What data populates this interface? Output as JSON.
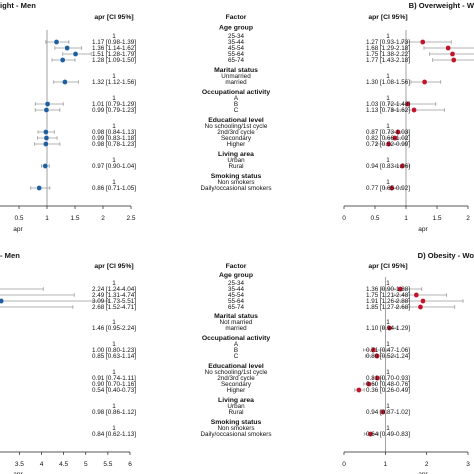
{
  "panels": [
    {
      "id": "A",
      "title": "ight - Men",
      "color": "#1f5fa0",
      "ci_header": "apr [CI 95%]",
      "ticks": [
        "0",
        "0.5",
        "1",
        "1.5",
        "2",
        "2.5"
      ],
      "xlabel": "apr",
      "ci_labels": [
        "1",
        "1.17 [0.98-1.39]",
        "1.36 [1.14-1.62]",
        "1.51 [1.28-1.79]",
        "1.28 [1.09-1.50]",
        "1",
        "1.32 [1.12-1.56]",
        "1",
        "1.01 [0.79-1.29]",
        "0.99 [0.79-1.23]",
        "1",
        "0.98 [0.84-1.13]",
        "0.99 [0.83-1.18]",
        "0.98 [0.78-1.23]",
        "1",
        "0.97 [0.90-1.04]",
        "1",
        "0.86 [0.71-1.05]"
      ]
    },
    {
      "id": "B",
      "title": "B) Overweight - W",
      "color": "#c0142a",
      "ci_header": "apr [CI 95%]",
      "ticks": [
        "0",
        "0.5",
        "1",
        "1.5",
        "2"
      ],
      "xlabel": "apr",
      "ci_labels": [
        "1",
        "1.27 [0.93-1.73]",
        "1.68 [1.29-2.18]",
        "1.75 [1.38-2.22]",
        "1.77 [1.43-2.18]",
        "1",
        "1.30 [1.08-1.56]",
        "1",
        "1.03 [0.72-1.48]",
        "1.13 [0.78-1.62]",
        "1",
        "0.87 [0.73-1.03]",
        "0.82 [0.66-1.02]",
        "0.72 [0.52-0.99]",
        "1",
        "0.94 [0.83-1.06]",
        "1",
        "0.77 [0.65-0.92]"
      ]
    },
    {
      "id": "C",
      "title": "- Men",
      "color": "#1f5fa0",
      "ci_header": "apr [CI 95%]",
      "ticks": [
        "1.5",
        "2",
        "2.5",
        "3",
        "3.5",
        "4",
        "4.5",
        "5",
        "5.5",
        "6"
      ],
      "xlabel": "apr",
      "ci_labels": [
        "1",
        "2.24 [1.24-4.04]",
        "2.49 [1.31-4.74]",
        "3.09 [1.73-5.51]",
        "2.68 [1.52-4.71]",
        "1",
        "1.46 [0.95-2.24]",
        "1",
        "1.00 [0.80-1.23]",
        "0.85 [0.63-1.14]",
        "1",
        "0.91 [0.74-1.11]",
        "0.90 [0.70-1.16]",
        "0.54 [0.40-0.73]",
        "1",
        "0.98 [0.86-1.12]",
        "1",
        "0.84 [0.62-1.13]"
      ]
    },
    {
      "id": "D",
      "title": "D) Obesity - Wo",
      "color": "#c0142a",
      "ci_header": "apr [CI 95%]",
      "ticks": [
        "0",
        "1",
        "2",
        "3"
      ],
      "xlabel": "apr",
      "ci_labels": [
        "1",
        "1.36 [0.90-1.88]",
        "1.75 [1.21-2.48]",
        "1.91 [1.26-2.88]",
        "1.85 [1.27-2.68]",
        "1",
        "1.10 [0.94-1.29]",
        "1",
        "0.71 [0.47-1.06]",
        "0.80 [0.52-1.24]",
        "1",
        "0.81 [0.70-0.93]",
        "0.60 [0.48-0.76]",
        "0.36 [0.26-0.49]",
        "1",
        "0.94 [0.87-1.02]",
        "1",
        "0.64 [0.49-0.83]"
      ]
    }
  ],
  "factor_tables": [
    {
      "rows": [
        {
          "text": "Factor",
          "kind": "header"
        },
        {
          "text": "Age group",
          "kind": "header"
        },
        {
          "text": "25-34",
          "kind": "level"
        },
        {
          "text": "35-44",
          "kind": "level"
        },
        {
          "text": "45-54",
          "kind": "level"
        },
        {
          "text": "55-64",
          "kind": "level"
        },
        {
          "text": "65-74",
          "kind": "level"
        },
        {
          "text": "Marital status",
          "kind": "header"
        },
        {
          "text": "Unmarried",
          "kind": "level"
        },
        {
          "text": "married",
          "kind": "level"
        },
        {
          "text": "Occupational activity",
          "kind": "header"
        },
        {
          "text": "A",
          "kind": "level"
        },
        {
          "text": "B",
          "kind": "level"
        },
        {
          "text": "C",
          "kind": "level"
        },
        {
          "text": "Educational level",
          "kind": "header"
        },
        {
          "text": "No schooling/1st cycle",
          "kind": "level"
        },
        {
          "text": "2nd/3rd cycle",
          "kind": "level"
        },
        {
          "text": "Secondary",
          "kind": "level"
        },
        {
          "text": "Higher",
          "kind": "level"
        },
        {
          "text": "Living area",
          "kind": "header"
        },
        {
          "text": "Urban",
          "kind": "level"
        },
        {
          "text": "Rural",
          "kind": "level"
        },
        {
          "text": "Smoking status",
          "kind": "header"
        },
        {
          "text": "Non smokers",
          "kind": "level"
        },
        {
          "text": "Daily/occasional smokers",
          "kind": "level"
        }
      ]
    },
    {
      "rows": [
        {
          "text": "Factor",
          "kind": "header"
        },
        {
          "text": "Age group",
          "kind": "header"
        },
        {
          "text": "25-34",
          "kind": "level"
        },
        {
          "text": "35-44",
          "kind": "level"
        },
        {
          "text": "45-54",
          "kind": "level"
        },
        {
          "text": "55-64",
          "kind": "level"
        },
        {
          "text": "65-74",
          "kind": "level"
        },
        {
          "text": "Marital status",
          "kind": "header"
        },
        {
          "text": "Not married",
          "kind": "level"
        },
        {
          "text": "married",
          "kind": "level"
        },
        {
          "text": "Occupational activity",
          "kind": "header"
        },
        {
          "text": "A",
          "kind": "level"
        },
        {
          "text": "B",
          "kind": "level"
        },
        {
          "text": "C",
          "kind": "level"
        },
        {
          "text": "Educational level",
          "kind": "header"
        },
        {
          "text": "No schooling/1st cycle",
          "kind": "level"
        },
        {
          "text": "2nd/3rd cycle",
          "kind": "level"
        },
        {
          "text": "Secondary",
          "kind": "level"
        },
        {
          "text": "Higher",
          "kind": "level"
        },
        {
          "text": "Living area",
          "kind": "header"
        },
        {
          "text": "Urban",
          "kind": "level"
        },
        {
          "text": "Rural",
          "kind": "level"
        },
        {
          "text": "Smoking status",
          "kind": "header"
        },
        {
          "text": "Non smokers",
          "kind": "level"
        },
        {
          "text": "Daily/occasional smokers",
          "kind": "level"
        }
      ]
    }
  ],
  "chart_data": [
    {
      "type": "scatter",
      "title": "ight - Men",
      "xlabel": "apr",
      "xlim": [
        0,
        2.5
      ],
      "reference_line": 1,
      "series": [
        {
          "estimates": [
            1,
            1.17,
            1.36,
            1.51,
            1.28,
            1,
            1.32,
            1,
            1.01,
            0.99,
            1,
            0.98,
            0.99,
            0.98,
            1,
            0.97,
            1,
            0.86
          ],
          "lower": [
            null,
            0.98,
            1.14,
            1.28,
            1.09,
            null,
            1.12,
            null,
            0.79,
            0.79,
            null,
            0.84,
            0.83,
            0.78,
            null,
            0.9,
            null,
            0.71
          ],
          "upper": [
            null,
            1.39,
            1.62,
            1.79,
            1.5,
            null,
            1.56,
            null,
            1.29,
            1.23,
            null,
            1.13,
            1.18,
            1.23,
            null,
            1.04,
            null,
            1.05
          ]
        }
      ]
    },
    {
      "type": "scatter",
      "title": "B) Overweight - W",
      "xlabel": "apr",
      "xlim": [
        0,
        2
      ],
      "reference_line": 1,
      "series": [
        {
          "estimates": [
            1,
            1.27,
            1.68,
            1.75,
            1.77,
            1,
            1.3,
            1,
            1.03,
            1.13,
            1,
            0.87,
            0.82,
            0.72,
            1,
            0.94,
            1,
            0.77
          ],
          "lower": [
            null,
            0.93,
            1.29,
            1.38,
            1.43,
            null,
            1.08,
            null,
            0.72,
            0.78,
            null,
            0.73,
            0.66,
            0.52,
            null,
            0.83,
            null,
            0.65
          ],
          "upper": [
            null,
            1.73,
            2.18,
            2.22,
            2.18,
            null,
            1.56,
            null,
            1.48,
            1.62,
            null,
            1.03,
            1.02,
            0.99,
            null,
            1.06,
            null,
            0.92
          ]
        }
      ]
    },
    {
      "type": "scatter",
      "title": "- Men",
      "xlabel": "apr",
      "xlim": [
        0,
        6
      ],
      "reference_line": 1,
      "series": [
        {
          "estimates": [
            1,
            2.24,
            2.49,
            3.09,
            2.68,
            1,
            1.46,
            1,
            1.0,
            0.85,
            1,
            0.91,
            0.9,
            0.54,
            1,
            0.98,
            1,
            0.84
          ],
          "lower": [
            null,
            1.24,
            1.31,
            1.73,
            1.52,
            null,
            0.95,
            null,
            0.8,
            0.63,
            null,
            0.74,
            0.7,
            0.4,
            null,
            0.86,
            null,
            0.62
          ],
          "upper": [
            null,
            4.04,
            4.74,
            5.51,
            4.71,
            null,
            2.24,
            null,
            1.23,
            1.14,
            null,
            1.11,
            1.16,
            0.73,
            null,
            1.12,
            null,
            1.13
          ]
        }
      ]
    },
    {
      "type": "scatter",
      "title": "D) Obesity - Wo",
      "xlabel": "apr",
      "xlim": [
        0,
        3
      ],
      "reference_line": 1,
      "series": [
        {
          "estimates": [
            1,
            1.36,
            1.75,
            1.91,
            1.85,
            1,
            1.1,
            1,
            0.71,
            0.8,
            1,
            0.81,
            0.6,
            0.36,
            1,
            0.94,
            1,
            0.64
          ],
          "lower": [
            null,
            0.9,
            1.21,
            1.26,
            1.27,
            null,
            0.94,
            null,
            0.47,
            0.52,
            null,
            0.7,
            0.48,
            0.26,
            null,
            0.87,
            null,
            0.49
          ],
          "upper": [
            null,
            1.88,
            2.48,
            2.88,
            2.68,
            null,
            1.29,
            null,
            1.06,
            1.24,
            null,
            0.93,
            0.76,
            0.49,
            null,
            1.02,
            null,
            0.83
          ]
        }
      ]
    }
  ]
}
